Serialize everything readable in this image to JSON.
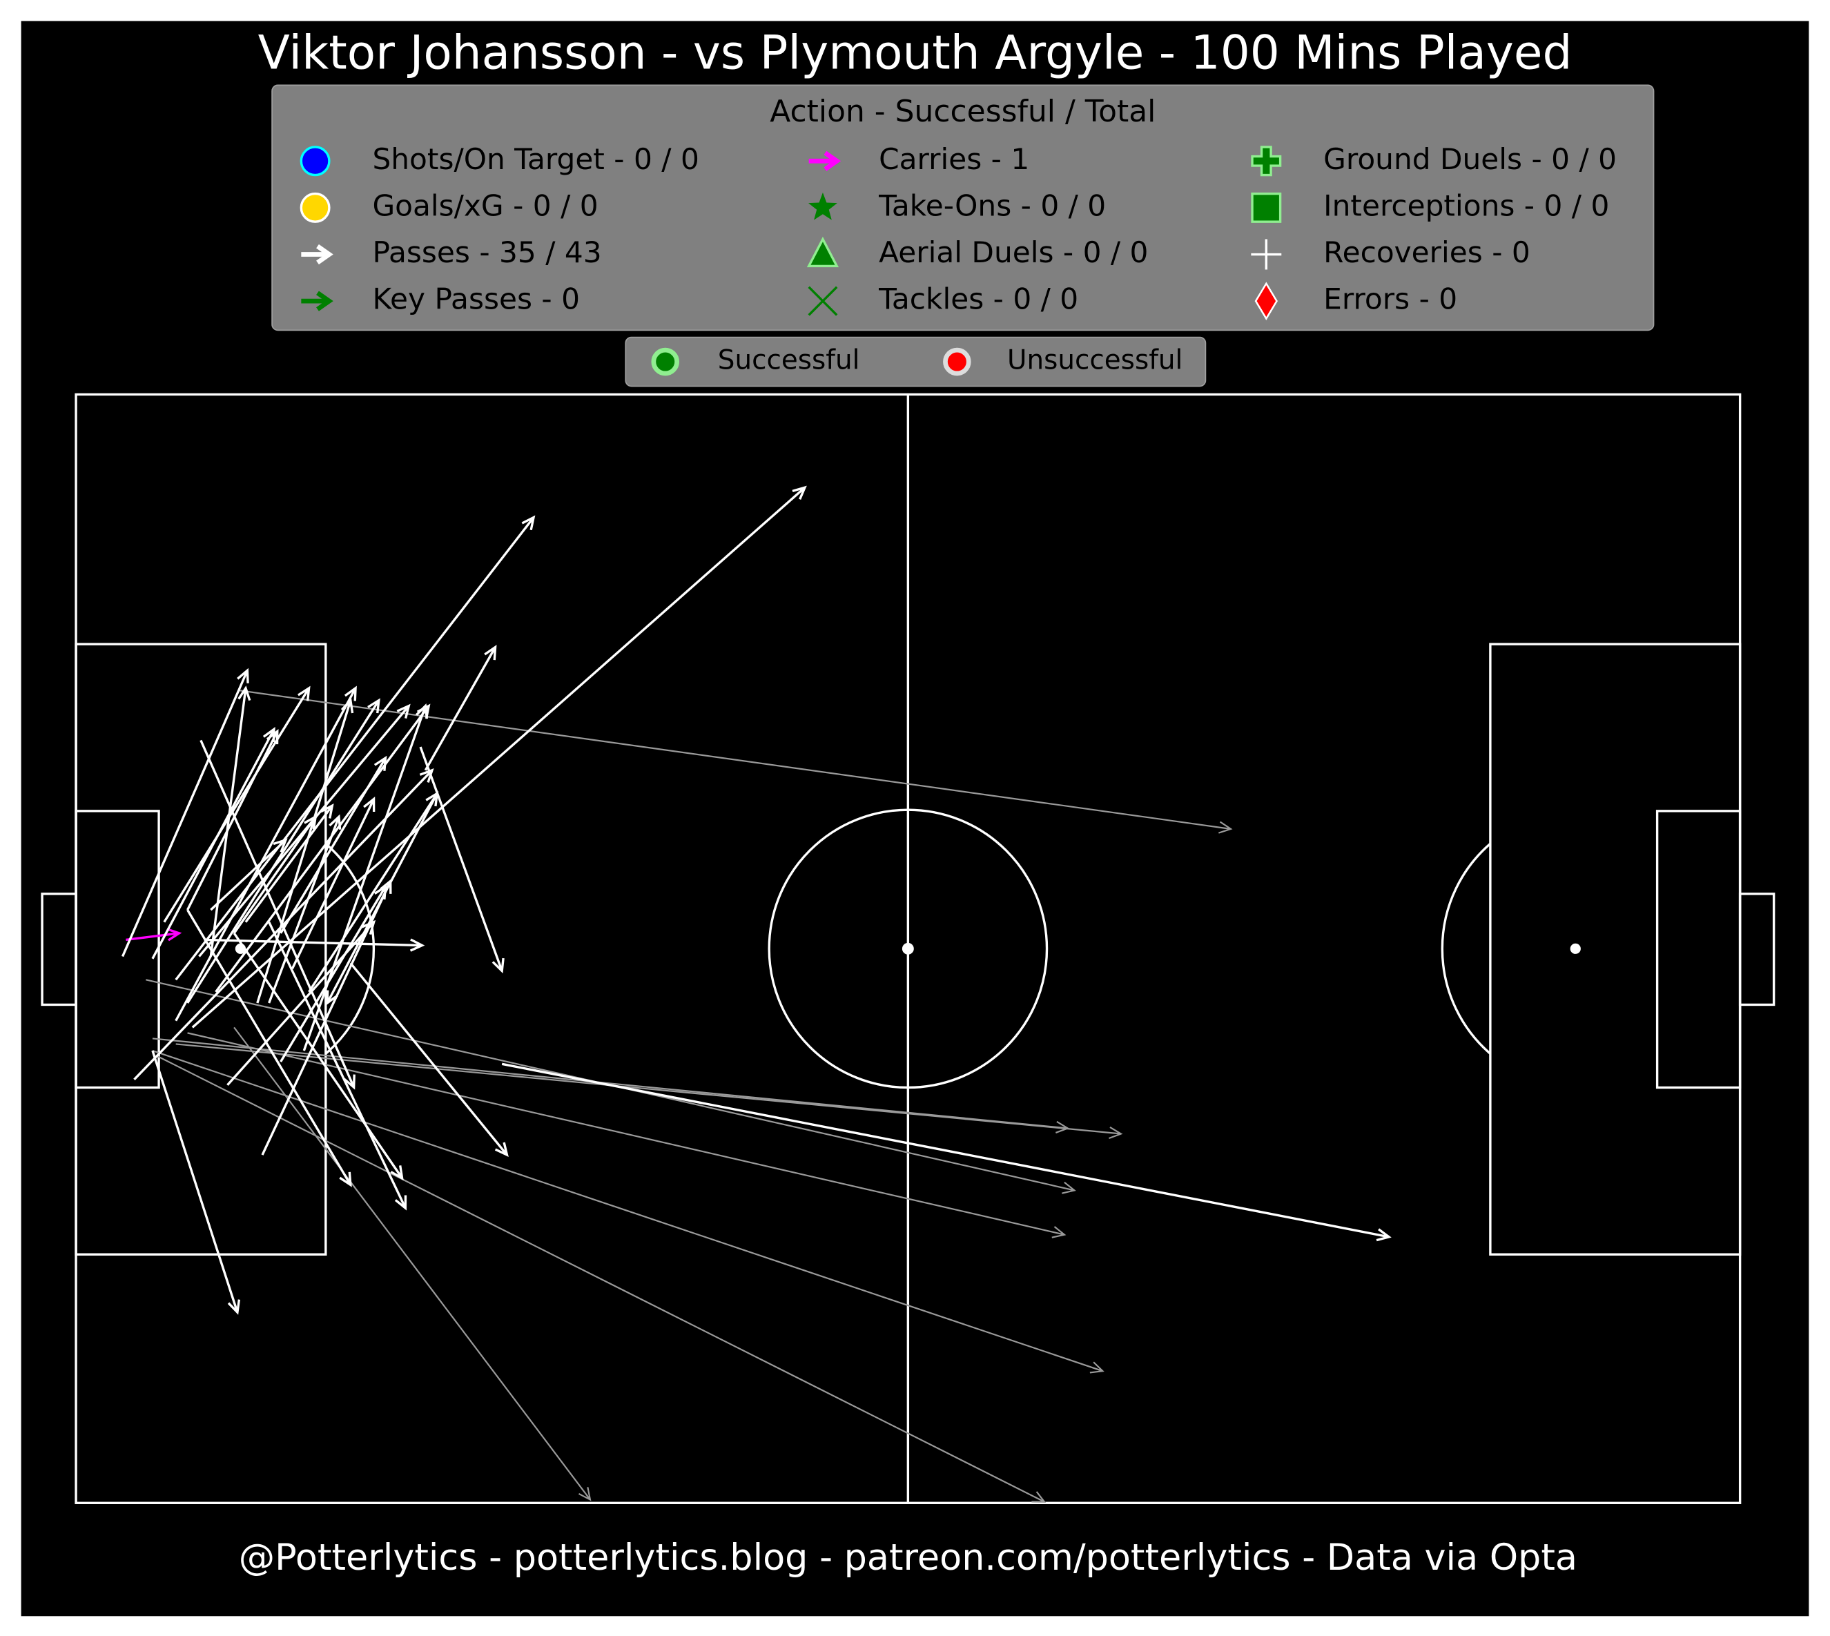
{
  "chart_data": {
    "type": "pitch",
    "title": "Viktor Johansson - vs Plymouth Argyle - 100 Mins Played",
    "legend_title": "Action - Successful / Total",
    "legend": [
      "Shots/On Target - 0 / 0",
      "Goals/xG - 0 / 0",
      "Passes - 35 / 43",
      "Key Passes - 0",
      "Carries - 1",
      "Take-Ons - 0 / 0",
      "Aerial Duels - 0 / 0",
      "Tackles - 0 / 0",
      "Ground Duels - 0 / 0",
      "Interceptions - 0 / 0",
      "Recoveries - 0",
      "Errors - 0"
    ],
    "outcome_legend": [
      "Successful",
      "Unsuccessful"
    ],
    "footer": "@Potterlytics - potterlytics.blog - patreon.com/potterlytics - Data via Opta",
    "xlim": [
      0,
      100
    ],
    "ylim": [
      0,
      100
    ],
    "pass_color": "#ffffff",
    "unsuccessful_color": "#9a9a9a",
    "carry_color": "#ff00ff",
    "arrows": [
      {
        "kind": "carry",
        "successful": true,
        "x": 3.0,
        "y": 49.2,
        "end_x": 6.2,
        "end_y": 48.6
      },
      {
        "kind": "pass",
        "successful": false,
        "x": 9.8,
        "y": 26.7,
        "end_x": 69.4,
        "end_y": 39.2
      },
      {
        "kind": "pass",
        "successful": false,
        "x": 4.6,
        "y": 58.1,
        "end_x": 59.6,
        "end_y": 66.2
      },
      {
        "kind": "pass",
        "successful": false,
        "x": 6.0,
        "y": 58.6,
        "end_x": 62.8,
        "end_y": 66.7
      },
      {
        "kind": "pass",
        "successful": false,
        "x": 4.2,
        "y": 52.8,
        "end_x": 60.0,
        "end_y": 71.8
      },
      {
        "kind": "pass",
        "successful": false,
        "x": 6.7,
        "y": 57.6,
        "end_x": 59.4,
        "end_y": 75.8
      },
      {
        "kind": "pass",
        "successful": false,
        "x": 4.6,
        "y": 59.2,
        "end_x": 61.7,
        "end_y": 88.1
      },
      {
        "kind": "pass",
        "successful": false,
        "x": 9.5,
        "y": 57.1,
        "end_x": 30.9,
        "end_y": 99.7
      },
      {
        "kind": "pass",
        "successful": false,
        "x": 4.9,
        "y": 59.7,
        "end_x": 58.2,
        "end_y": 99.9
      },
      {
        "kind": "pass",
        "successful": true,
        "x": 2.8,
        "y": 50.7,
        "end_x": 10.3,
        "end_y": 24.9
      },
      {
        "kind": "pass",
        "successful": true,
        "x": 4.6,
        "y": 50.9,
        "end_x": 11.9,
        "end_y": 30.2
      },
      {
        "kind": "pass",
        "successful": true,
        "x": 5.3,
        "y": 47.6,
        "end_x": 14.0,
        "end_y": 26.5
      },
      {
        "kind": "pass",
        "successful": true,
        "x": 6.0,
        "y": 56.5,
        "end_x": 16.8,
        "end_y": 26.5
      },
      {
        "kind": "pass",
        "successful": true,
        "x": 6.7,
        "y": 54.9,
        "end_x": 18.2,
        "end_y": 27.6
      },
      {
        "kind": "pass",
        "successful": true,
        "x": 7.4,
        "y": 50.7,
        "end_x": 20.0,
        "end_y": 28.1
      },
      {
        "kind": "pass",
        "successful": true,
        "x": 8.4,
        "y": 53.9,
        "end_x": 21.2,
        "end_y": 28.1
      },
      {
        "kind": "pass",
        "successful": true,
        "x": 3.5,
        "y": 61.8,
        "end_x": 21.4,
        "end_y": 33.9
      },
      {
        "kind": "pass",
        "successful": true,
        "x": 6.0,
        "y": 52.8,
        "end_x": 27.5,
        "end_y": 11.1
      },
      {
        "kind": "pass",
        "successful": true,
        "x": 7.0,
        "y": 57.1,
        "end_x": 43.8,
        "end_y": 8.4
      },
      {
        "kind": "pass",
        "successful": true,
        "x": 7.7,
        "y": 49.2,
        "end_x": 20.8,
        "end_y": 49.7
      },
      {
        "kind": "pass",
        "successful": true,
        "x": 20.7,
        "y": 31.8,
        "end_x": 25.6,
        "end_y": 52.0
      },
      {
        "kind": "pass",
        "successful": true,
        "x": 7.5,
        "y": 31.2,
        "end_x": 16.7,
        "end_y": 62.5
      },
      {
        "kind": "pass",
        "successful": true,
        "x": 6.7,
        "y": 46.5,
        "end_x": 16.5,
        "end_y": 71.3
      },
      {
        "kind": "pass",
        "successful": true,
        "x": 9.5,
        "y": 48.6,
        "end_x": 19.6,
        "end_y": 70.7
      },
      {
        "kind": "pass",
        "successful": true,
        "x": 11.6,
        "y": 47.6,
        "end_x": 19.8,
        "end_y": 73.4
      },
      {
        "kind": "pass",
        "successful": true,
        "x": 16.5,
        "y": 51.3,
        "end_x": 25.9,
        "end_y": 68.6
      },
      {
        "kind": "pass",
        "successful": true,
        "x": 4.6,
        "y": 59.2,
        "end_x": 9.7,
        "end_y": 82.8
      },
      {
        "kind": "pass",
        "successful": true,
        "x": 25.6,
        "y": 60.4,
        "end_x": 78.9,
        "end_y": 76.0
      },
      {
        "kind": "pass",
        "successful": true,
        "x": 11.2,
        "y": 68.6,
        "end_x": 18.9,
        "end_y": 43.9
      },
      {
        "kind": "pass",
        "successful": true,
        "x": 9.1,
        "y": 62.3,
        "end_x": 17.9,
        "end_y": 47.6
      },
      {
        "kind": "pass",
        "successful": true,
        "x": 12.3,
        "y": 60.2,
        "end_x": 18.6,
        "end_y": 44.4
      },
      {
        "kind": "pass",
        "successful": true,
        "x": 21.7,
        "y": 36.0,
        "end_x": 15.1,
        "end_y": 54.9
      },
      {
        "kind": "pass",
        "successful": true,
        "x": 21.0,
        "y": 33.9,
        "end_x": 25.2,
        "end_y": 22.8
      },
      {
        "kind": "pass",
        "successful": true,
        "x": 8.1,
        "y": 50.7,
        "end_x": 10.2,
        "end_y": 26.5
      },
      {
        "kind": "pass",
        "successful": true,
        "x": 6.7,
        "y": 46.5,
        "end_x": 12.1,
        "end_y": 30.4
      },
      {
        "kind": "pass",
        "successful": true,
        "x": 9.5,
        "y": 48.6,
        "end_x": 14.4,
        "end_y": 38.1
      },
      {
        "kind": "pass",
        "successful": true,
        "x": 10.2,
        "y": 47.6,
        "end_x": 15.4,
        "end_y": 37.1
      },
      {
        "kind": "pass",
        "successful": true,
        "x": 12.3,
        "y": 48.6,
        "end_x": 18.6,
        "end_y": 32.8
      },
      {
        "kind": "pass",
        "successful": true,
        "x": 13.0,
        "y": 51.8,
        "end_x": 17.9,
        "end_y": 36.5
      },
      {
        "kind": "pass",
        "successful": true,
        "x": 10.9,
        "y": 54.9,
        "end_x": 16.5,
        "end_y": 27.6
      },
      {
        "kind": "pass",
        "successful": true,
        "x": 14.0,
        "y": 53.9,
        "end_x": 21.7,
        "end_y": 36.0
      },
      {
        "kind": "pass",
        "successful": true,
        "x": 13.7,
        "y": 59.2,
        "end_x": 21.0,
        "end_y": 28.1
      },
      {
        "kind": "pass",
        "successful": true,
        "x": 11.6,
        "y": 54.9,
        "end_x": 15.8,
        "end_y": 38.1
      },
      {
        "kind": "pass",
        "successful": true,
        "x": 8.1,
        "y": 46.5,
        "end_x": 12.6,
        "end_y": 40.2
      }
    ]
  }
}
